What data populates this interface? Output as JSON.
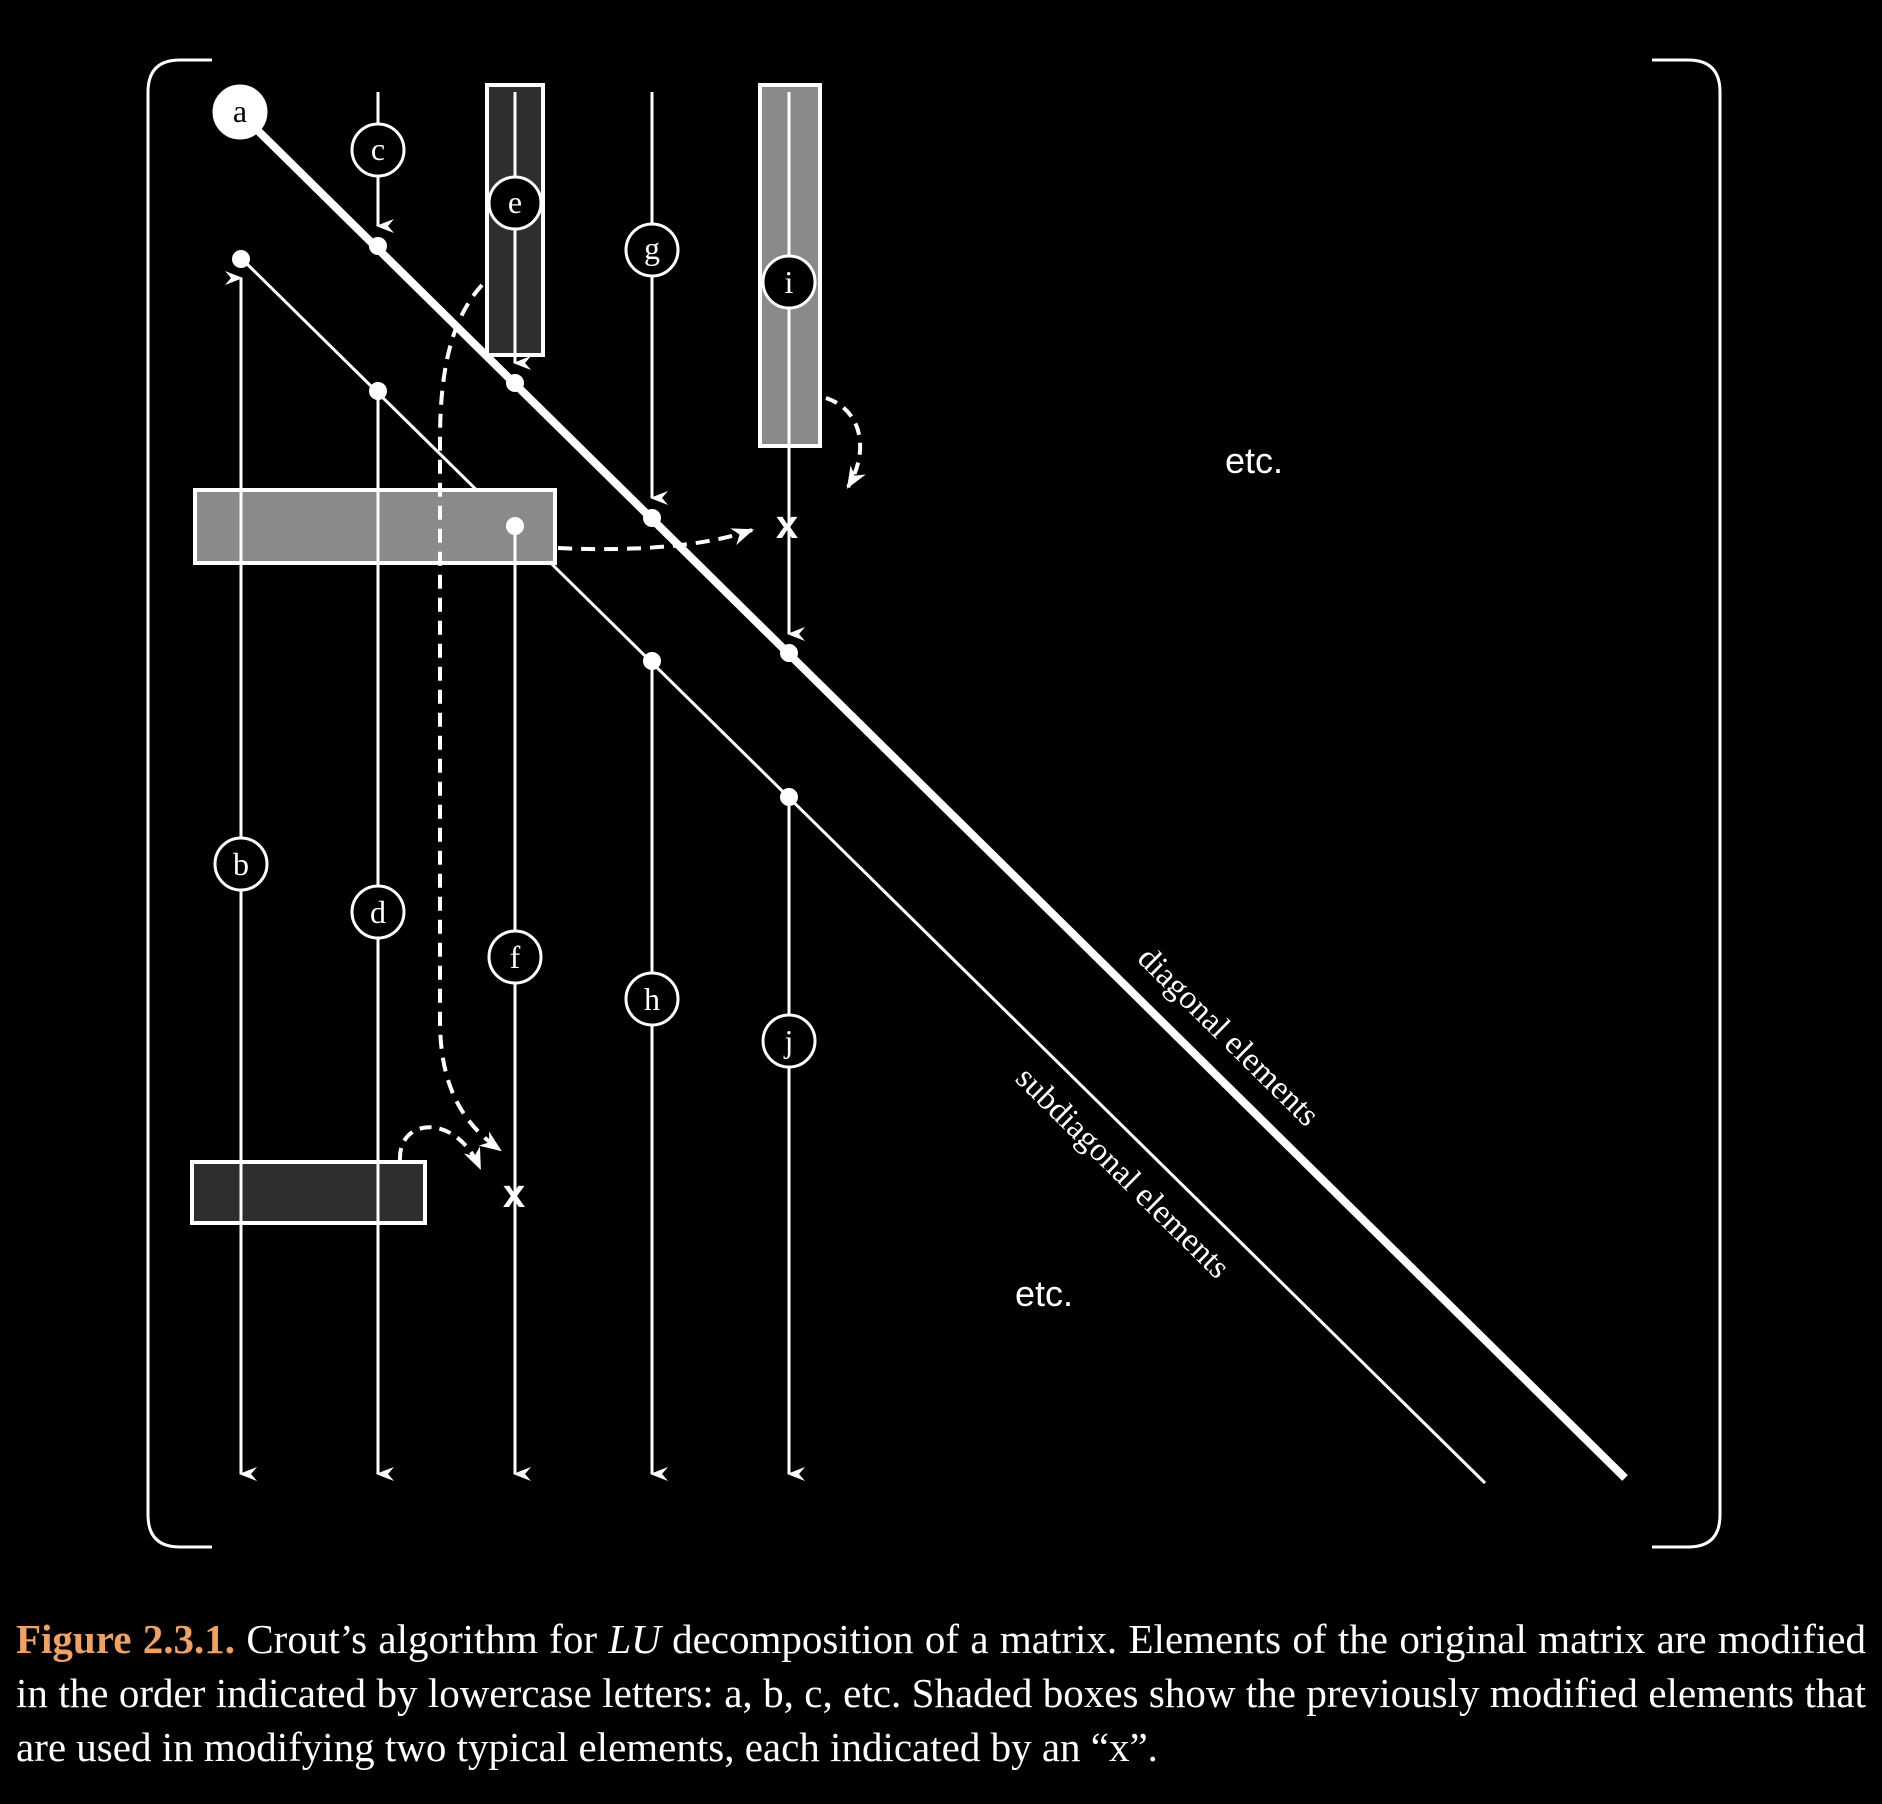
{
  "diagram": {
    "order_labels": [
      "a",
      "b",
      "c",
      "d",
      "e",
      "f",
      "g",
      "h",
      "i",
      "j"
    ],
    "etc_upper": "etc.",
    "etc_lower": "etc.",
    "diagonal_label": "diagonal elements",
    "subdiagonal_label": "subdiagonal elements",
    "mark_symbol": "x"
  },
  "caption": {
    "label": "Figure 2.3.1.",
    "text_before": "Crout’s algorithm for",
    "math": "LU",
    "text_after": "decomposition of a matrix. Elements of the original matrix are modified in the order indicated by lowercase letters: a, b, c, etc. Shaded boxes show the previously modified elements that are used in modifying two typical elements, each indicated by an “x”."
  },
  "colors": {
    "background": "#000000",
    "foreground": "#ffffff",
    "light_shade": "#8a8a8a",
    "dark_shade": "#2e2e2e",
    "caption_label": "#f0a060"
  }
}
